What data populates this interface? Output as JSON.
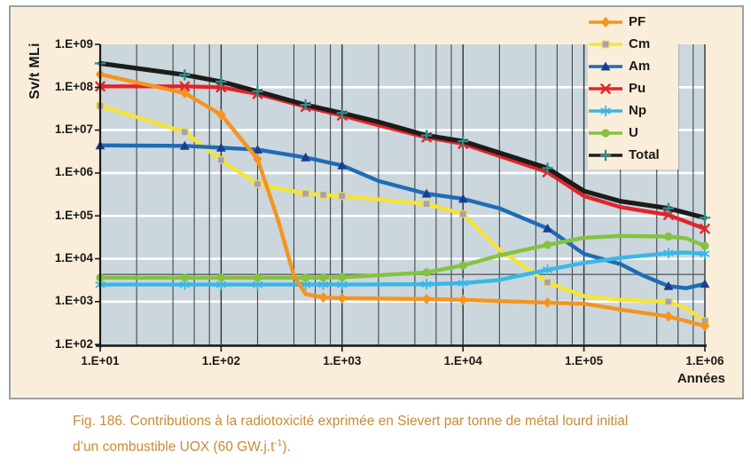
{
  "page": {
    "background": "#ffffff"
  },
  "figure": {
    "background": "#FAEEDA",
    "border_color": "#98A2A6"
  },
  "legend": {
    "background": "#FAEEDA",
    "order": [
      "PF",
      "Cm",
      "Am",
      "Pu",
      "Np",
      "U",
      "Total"
    ]
  },
  "caption": {
    "color": "#C98B35",
    "line1": "Fig. 186. Contributions à la radiotoxicité exprimée en Sievert par tonne de métal lourd initial",
    "line2_pre": "d’un combustible UOX (60 GW.j.t",
    "line2_sup": "-1",
    "line2_post": ")."
  },
  "chart_data": {
    "type": "line",
    "title": "",
    "xlabel": "Années",
    "ylabel": "Sv/t MLi",
    "x_scale": "log",
    "y_scale": "log",
    "xlim": [
      10,
      1000000
    ],
    "ylim": [
      100,
      1000000000
    ],
    "legend_position": "top-right-inside",
    "grid": "on",
    "colors": {
      "plot_bg": "#CBD6DD",
      "grid_major_h": "#FFFFFF",
      "grid_minor_v": "#43484C",
      "grid_major_v": "#2F3438",
      "axis": "#1A1A1A",
      "tick_label": "#1A1A1A"
    },
    "x_ticks": [
      {
        "label": "1.E+01",
        "value": 10
      },
      {
        "label": "1.E+02",
        "value": 100
      },
      {
        "label": "1.E+03",
        "value": 1000
      },
      {
        "label": "1.E+04",
        "value": 10000
      },
      {
        "label": "1.E+05",
        "value": 100000
      },
      {
        "label": "1.E+06",
        "value": 1000000
      }
    ],
    "y_ticks": [
      {
        "label": "1.E+09",
        "value": 1000000000.0
      },
      {
        "label": "1.E+08",
        "value": 100000000.0
      },
      {
        "label": "1.E+07",
        "value": 10000000.0
      },
      {
        "label": "1.E+06",
        "value": 1000000.0
      },
      {
        "label": "1.E+05",
        "value": 100000.0
      },
      {
        "label": "1.E+04",
        "value": 10000.0
      },
      {
        "label": "1.E+03",
        "value": 1000.0
      },
      {
        "label": "1.E+02",
        "value": 100.0
      }
    ],
    "y_gridline_values": [
      1000.0,
      10000.0,
      100000.0,
      1000000.0,
      10000000.0,
      100000000.0
    ],
    "x_major_gridline_values": [
      100,
      1000,
      10000,
      100000,
      1000000
    ],
    "x_minor_gridline_values": [
      20,
      40,
      60,
      80,
      200,
      400,
      600,
      800,
      2000,
      4000,
      6000,
      8000,
      20000,
      40000,
      60000,
      80000,
      200000,
      400000,
      600000,
      800000
    ],
    "reference_line": {
      "value": 4300,
      "color": "#5B6064"
    },
    "draw_order": [
      "Cm",
      "Am",
      "Pu",
      "Np",
      "U",
      "PF",
      "Total"
    ],
    "series": [
      {
        "name": "PF",
        "color": "#F5941F",
        "marker": "diamond",
        "marker_color": "#F5941F",
        "width": 4.4,
        "points": [
          [
            10,
            200000000.0
          ],
          [
            50,
            73000000.0
          ],
          [
            100,
            23000000.0
          ],
          [
            200,
            2100000.0
          ],
          [
            300,
            70000.0
          ],
          [
            400,
            4000.0
          ],
          [
            500,
            1500.0
          ],
          [
            700,
            1250.0
          ],
          [
            1000,
            1200.0
          ],
          [
            5000,
            1150.0
          ],
          [
            10000,
            1100.0
          ],
          [
            50000,
            950.0
          ],
          [
            100000,
            900.0
          ],
          [
            200000,
            650.0
          ],
          [
            500000,
            450.0
          ],
          [
            1000000,
            270.0
          ]
        ],
        "marker_x": [
          10,
          50,
          100,
          200,
          700,
          1000,
          5000,
          10000,
          50000,
          500000,
          1000000
        ]
      },
      {
        "name": "Cm",
        "color": "#F6E433",
        "marker": "square",
        "marker_color": "#A89DC4",
        "width": 4.4,
        "points": [
          [
            10,
            37000000.0
          ],
          [
            50,
            9000000.0
          ],
          [
            100,
            2000000.0
          ],
          [
            200,
            550000.0
          ],
          [
            500,
            330000.0
          ],
          [
            700,
            310000.0
          ],
          [
            1000,
            290000.0
          ],
          [
            5000,
            190000.0
          ],
          [
            10000,
            110000.0
          ],
          [
            20000,
            16000.0
          ],
          [
            50000,
            2800.0
          ],
          [
            100000,
            1350.0
          ],
          [
            200000,
            1100.0
          ],
          [
            500000,
            1000.0
          ],
          [
            700000,
            700.0
          ],
          [
            1000000,
            350.0
          ]
        ],
        "marker_x": [
          10,
          50,
          100,
          200,
          500,
          700,
          1000,
          5000,
          10000,
          50000,
          500000,
          1000000
        ]
      },
      {
        "name": "Am",
        "color": "#1E6CB5",
        "marker": "triangle",
        "marker_color": "#1B3E8C",
        "width": 4.4,
        "points": [
          [
            10,
            4400000.0
          ],
          [
            50,
            4300000.0
          ],
          [
            100,
            3900000.0
          ],
          [
            200,
            3500000.0
          ],
          [
            500,
            2300000.0
          ],
          [
            1000,
            1500000.0
          ],
          [
            2000,
            650000.0
          ],
          [
            5000,
            330000.0
          ],
          [
            10000,
            250000.0
          ],
          [
            20000,
            150000.0
          ],
          [
            50000,
            51000.0
          ],
          [
            100000,
            13000.0
          ],
          [
            200000,
            7500.0
          ],
          [
            300000,
            4200.0
          ],
          [
            500000,
            2300.0
          ],
          [
            700000,
            2050.0
          ],
          [
            1000000,
            2600.0
          ]
        ],
        "marker_x": [
          10,
          50,
          100,
          200,
          500,
          1000,
          5000,
          10000,
          50000,
          500000,
          1000000
        ]
      },
      {
        "name": "Pu",
        "color": "#E3232B",
        "marker": "x",
        "marker_color": "#E3232B",
        "width": 4.4,
        "points": [
          [
            10,
            105000000.0
          ],
          [
            50,
            105000000.0
          ],
          [
            100,
            100000000.0
          ],
          [
            200,
            70000000.0
          ],
          [
            500,
            35000000.0
          ],
          [
            1000,
            22000000.0
          ],
          [
            2000,
            13000000.0
          ],
          [
            5000,
            6800000.0
          ],
          [
            10000,
            4800000.0
          ],
          [
            50000,
            1050000.0
          ],
          [
            100000,
            290000.0
          ],
          [
            200000,
            160000.0
          ],
          [
            500000,
            105000.0
          ],
          [
            1000000,
            50000.0
          ]
        ],
        "marker_x": [
          10,
          50,
          100,
          200,
          500,
          1000,
          5000,
          10000,
          50000,
          500000,
          1000000
        ]
      },
      {
        "name": "Np",
        "color": "#39B7E8",
        "marker": "asterisk",
        "marker_color": "#39B7E8",
        "width": 4.4,
        "points": [
          [
            10,
            2500.0
          ],
          [
            50,
            2500.0
          ],
          [
            100,
            2500.0
          ],
          [
            200,
            2500.0
          ],
          [
            500,
            2500.0
          ],
          [
            700,
            2500.0
          ],
          [
            1000,
            2500.0
          ],
          [
            5000,
            2550.0
          ],
          [
            10000,
            2700.0
          ],
          [
            20000,
            3200.0
          ],
          [
            50000,
            5500.0
          ],
          [
            100000,
            8000.0
          ],
          [
            200000,
            10500.0
          ],
          [
            500000,
            13500.0
          ],
          [
            700000,
            14000.0
          ],
          [
            1000000,
            13000.0
          ]
        ],
        "marker_x": [
          10,
          50,
          100,
          200,
          500,
          700,
          1000,
          5000,
          10000,
          50000,
          500000,
          1000000
        ]
      },
      {
        "name": "U",
        "color": "#84C341",
        "marker": "circle",
        "marker_color": "#84C341",
        "width": 4.4,
        "points": [
          [
            10,
            3600.0
          ],
          [
            50,
            3600.0
          ],
          [
            100,
            3600.0
          ],
          [
            200,
            3600.0
          ],
          [
            500,
            3600.0
          ],
          [
            700,
            3650.0
          ],
          [
            1000,
            3700.0
          ],
          [
            5000,
            4800.0
          ],
          [
            10000,
            7000.0
          ],
          [
            20000,
            12000.0
          ],
          [
            50000,
            21000.0
          ],
          [
            100000,
            31000.0
          ],
          [
            200000,
            34000.0
          ],
          [
            500000,
            33000.0
          ],
          [
            700000,
            30000.0
          ],
          [
            1000000,
            20000.0
          ]
        ],
        "marker_x": [
          10,
          50,
          100,
          200,
          500,
          700,
          1000,
          5000,
          10000,
          50000,
          500000,
          1000000
        ]
      },
      {
        "name": "Total",
        "color": "#1C1C1A",
        "marker": "plus",
        "marker_color": "#2E8F8F",
        "width": 5.2,
        "points": [
          [
            10,
            360000000.0
          ],
          [
            50,
            195000000.0
          ],
          [
            100,
            135000000.0
          ],
          [
            200,
            80000000.0
          ],
          [
            500,
            39000000.0
          ],
          [
            1000,
            25000000.0
          ],
          [
            2000,
            15500000.0
          ],
          [
            5000,
            7500000.0
          ],
          [
            10000,
            5500000.0
          ],
          [
            50000,
            1300000.0
          ],
          [
            100000,
            380000.0
          ],
          [
            200000,
            220000.0
          ],
          [
            500000,
            150000.0
          ],
          [
            1000000,
            90000.0
          ]
        ],
        "marker_x": [
          10,
          50,
          100,
          200,
          500,
          1000,
          5000,
          10000,
          50000,
          500000,
          1000000
        ]
      }
    ]
  }
}
